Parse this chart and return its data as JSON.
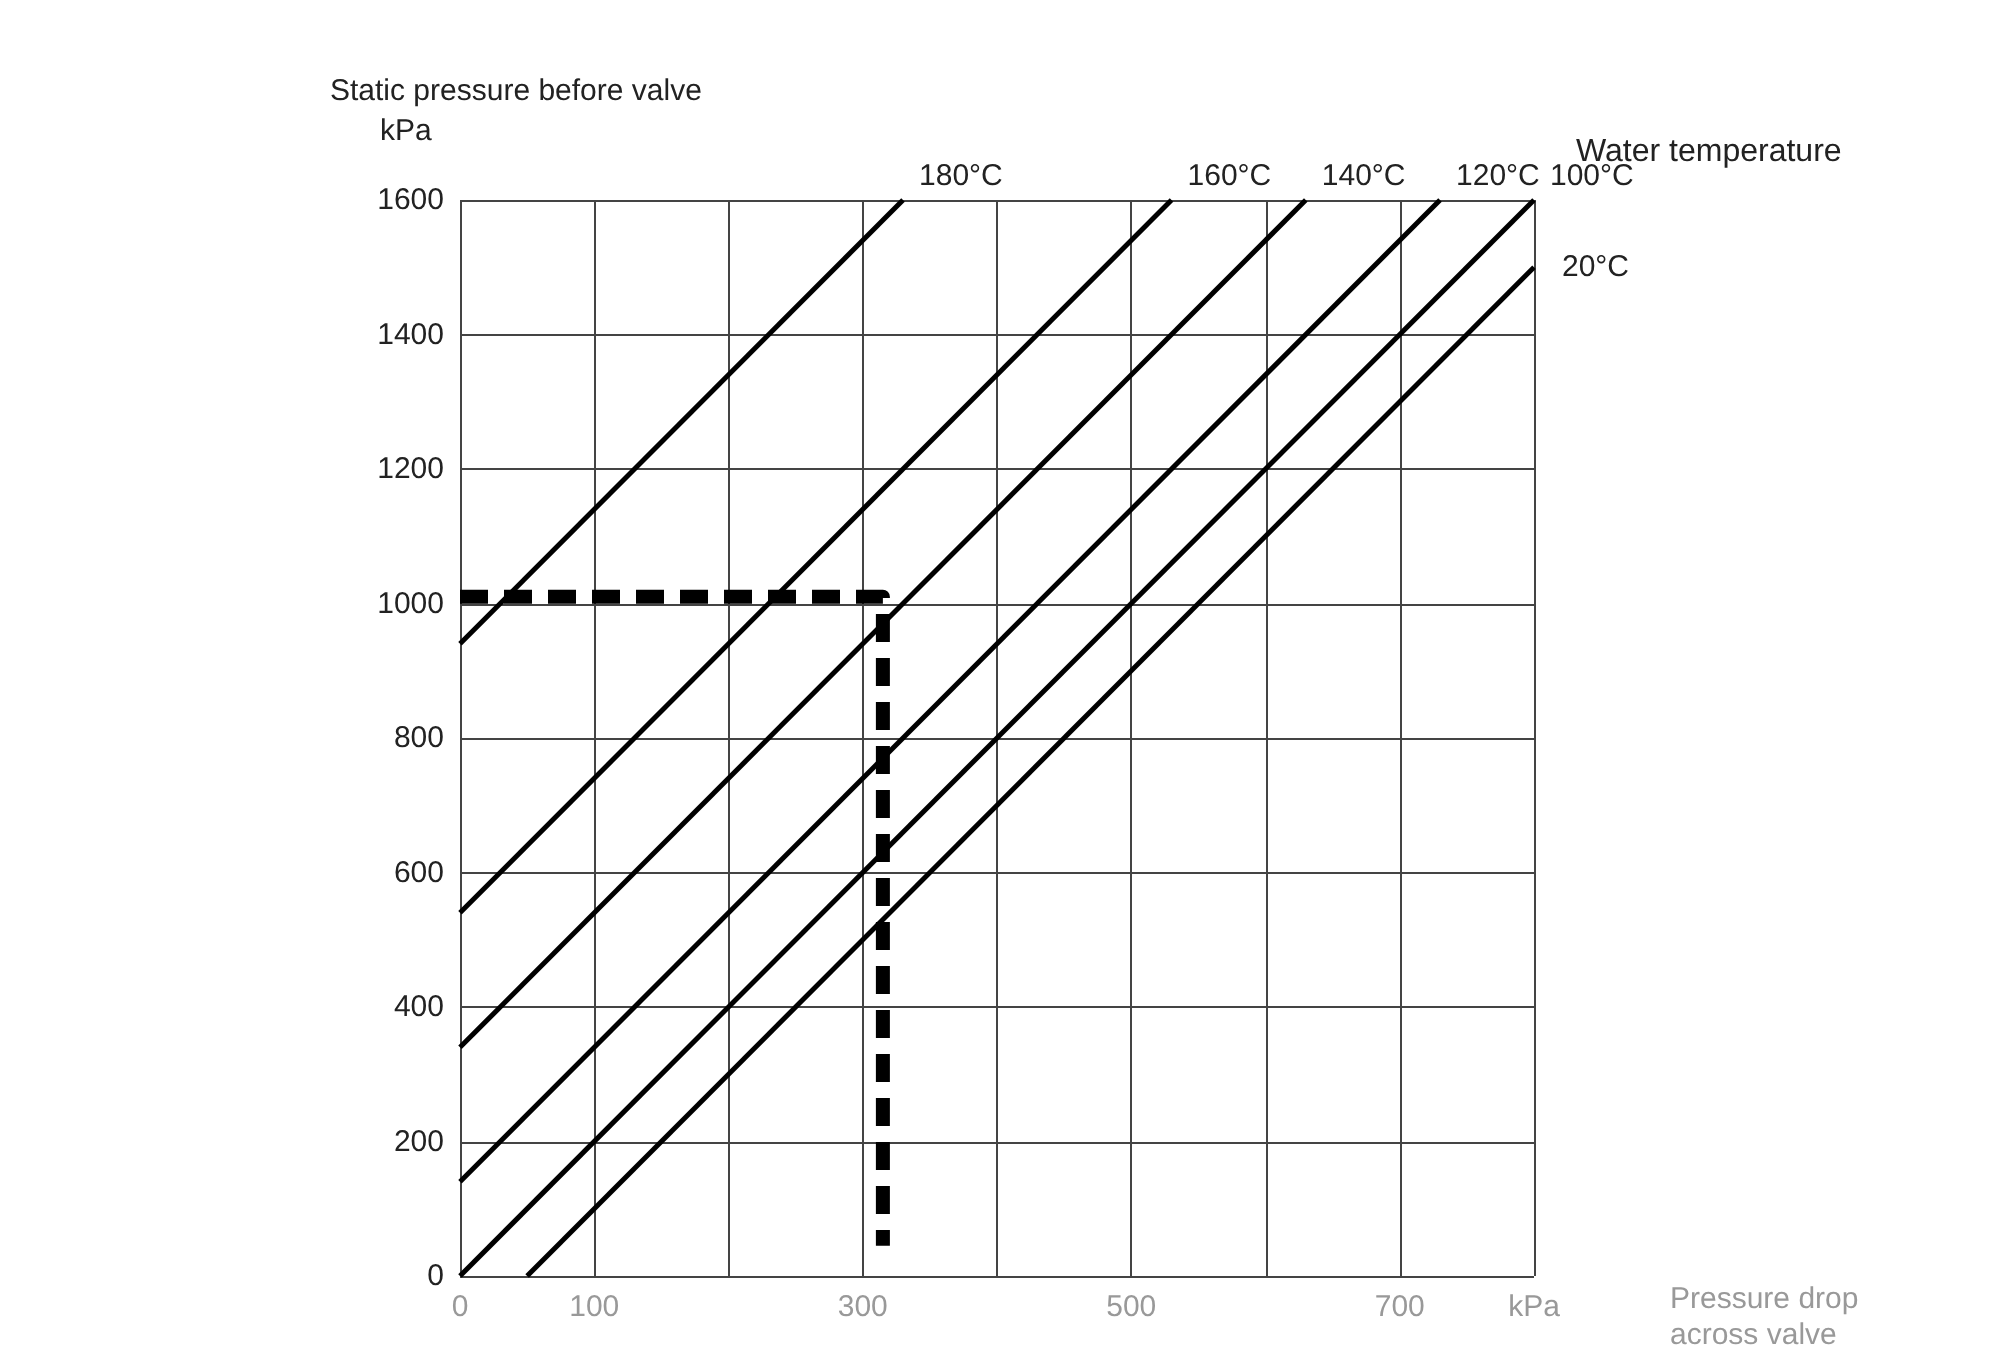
{
  "chart_data": {
    "type": "line",
    "ylabel": "Static pressure before valve\nkPa",
    "xlabel": "Pressure drop\nacross valve",
    "legend_title": "Water temperature",
    "xlim": [
      0,
      800
    ],
    "xticks": [
      0,
      100,
      {
        "value": 200,
        "label": null
      },
      300,
      {
        "value": 400,
        "label": null
      },
      500,
      {
        "value": 600,
        "label": null
      },
      700,
      {
        "value": 800,
        "label": "kPa"
      }
    ],
    "ylim": [
      0,
      1600
    ],
    "yticks": [
      0,
      200,
      400,
      600,
      800,
      1000,
      1200,
      1400,
      1600
    ],
    "grid": true,
    "marker": "none",
    "line_style": "solid",
    "series": [
      {
        "name": "180°C",
        "color": "#000000",
        "x": [
          0,
          330
        ],
        "values": [
          940,
          1600
        ]
      },
      {
        "name": "160°C",
        "color": "#000000",
        "x": [
          0,
          530
        ],
        "values": [
          540,
          1600
        ]
      },
      {
        "name": "140°C",
        "color": "#000000",
        "x": [
          0,
          630
        ],
        "values": [
          340,
          1600
        ]
      },
      {
        "name": "120°C",
        "color": "#000000",
        "x": [
          0,
          730
        ],
        "values": [
          140,
          1600
        ]
      },
      {
        "name": "100°C",
        "color": "#000000",
        "x": [
          0,
          800
        ],
        "values": [
          0,
          1600
        ]
      },
      {
        "name": "20°C",
        "color": "#000000",
        "x": [
          50,
          800
        ],
        "values": [
          0,
          1500
        ]
      },
      {
        "color": "#000000",
        "line_style": "dashed",
        "x": [
          0,
          315,
          315
        ],
        "values": [
          1010,
          1010,
          45
        ]
      }
    ]
  }
}
